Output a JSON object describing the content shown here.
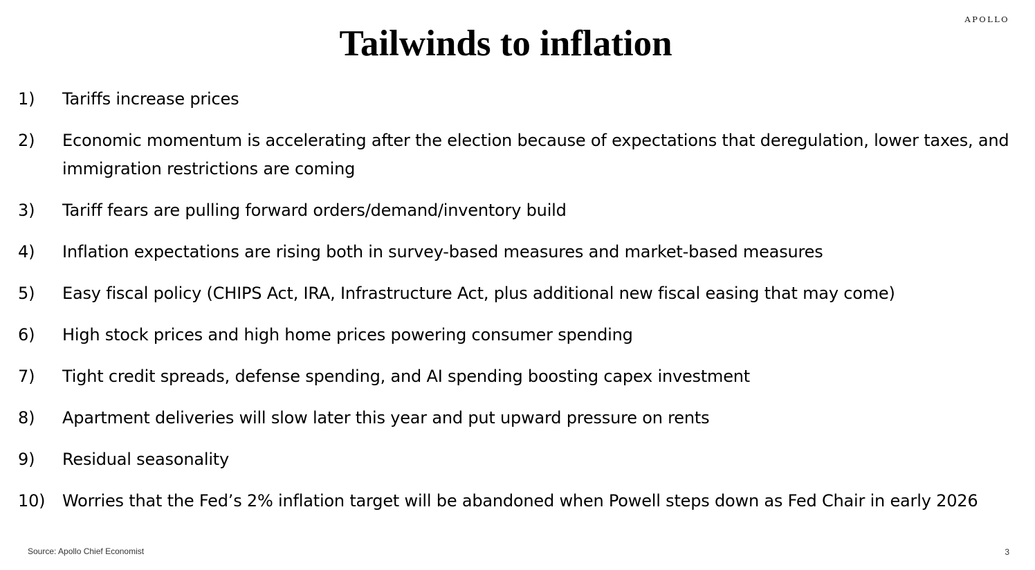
{
  "brand": {
    "logo_text": "APOLLO"
  },
  "slide": {
    "title": "Tailwinds to inflation",
    "items": [
      {
        "num": "1)",
        "text": "Tariffs increase prices"
      },
      {
        "num": "2)",
        "text": "Economic momentum is accelerating after the election because of expectations that deregulation, lower taxes, and immigration restrictions are coming"
      },
      {
        "num": "3)",
        "text": "Tariff fears are pulling forward orders/demand/inventory build"
      },
      {
        "num": "4)",
        "text": "Inflation expectations are rising both in survey-based measures and market-based measures"
      },
      {
        "num": "5)",
        "text": "Easy fiscal policy (CHIPS Act, IRA, Infrastructure Act, plus additional new fiscal easing that may come)"
      },
      {
        "num": "6)",
        "text": "High stock prices and high home prices powering consumer spending"
      },
      {
        "num": "7)",
        "text": "Tight credit spreads, defense spending, and AI spending boosting capex investment"
      },
      {
        "num": "8)",
        "text": "Apartment deliveries will slow later this year and put upward pressure on rents"
      },
      {
        "num": "9)",
        "text": "Residual seasonality"
      },
      {
        "num": "10)",
        "text": "Worries that the Fed’s 2% inflation target will be abandoned when Powell steps down as Fed Chair in early 2026"
      }
    ]
  },
  "footer": {
    "source": "Source: Apollo Chief Economist",
    "page_number": "3"
  }
}
